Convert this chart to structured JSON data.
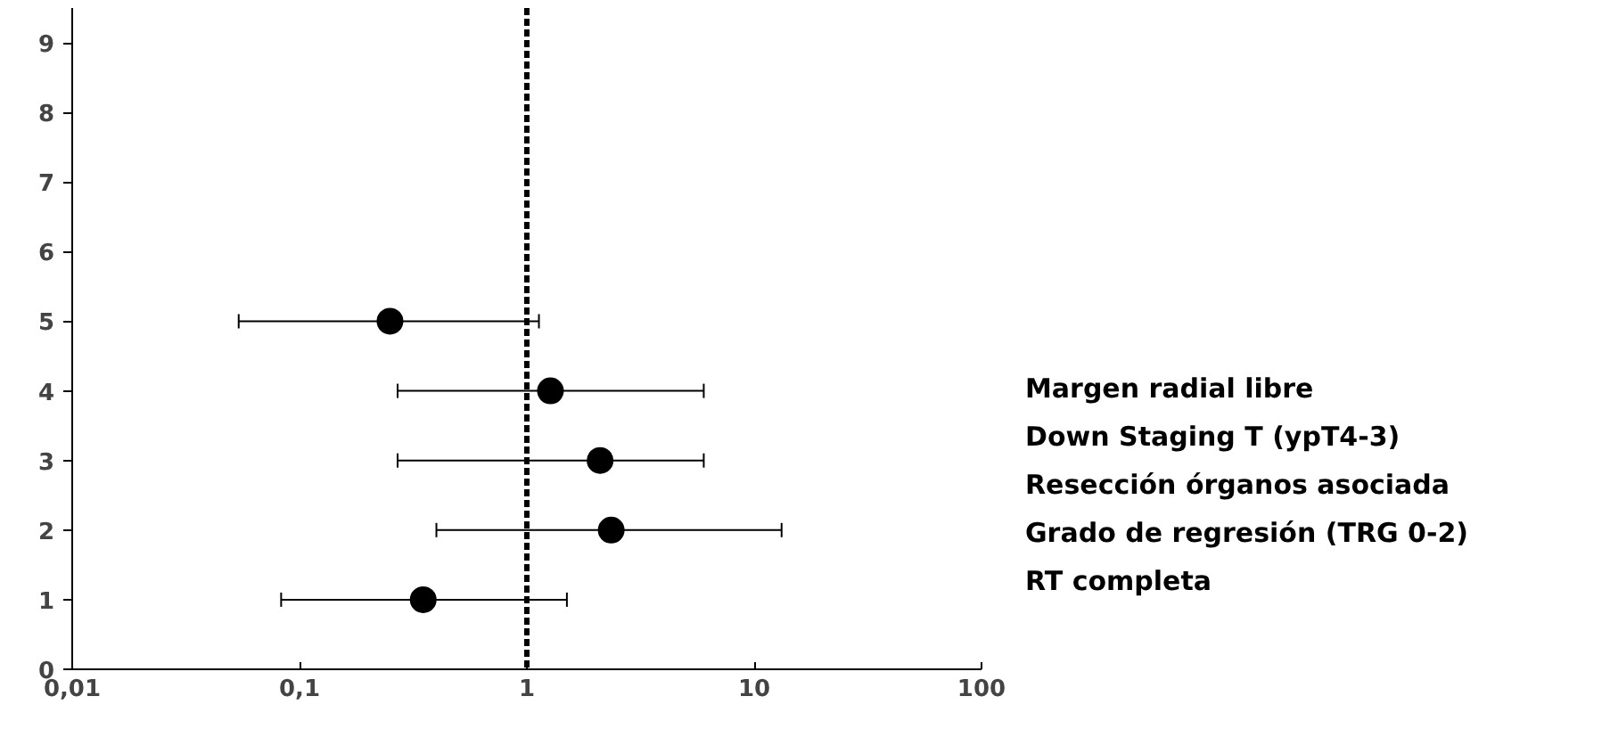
{
  "chart_data": {
    "type": "scatter",
    "series": [
      {
        "color": "#000000",
        "x": [
          0.25,
          1.27,
          2.1,
          2.35,
          0.35
        ],
        "values": [
          5,
          4,
          3,
          2,
          1
        ],
        "xerrors": [
          [
            0.054,
            1.13
          ],
          [
            0.27,
            6.0
          ],
          [
            0.27,
            6.0
          ],
          [
            0.4,
            13.2
          ],
          [
            0.083,
            1.5
          ]
        ]
      }
    ],
    "log": "x",
    "xlim": [
      0.01,
      100
    ],
    "ylim": [
      0,
      9.5
    ],
    "xticks": [
      {
        "value": 0.01,
        "label": "0,01"
      },
      {
        "value": 0.1,
        "label": "0,1"
      },
      1,
      10,
      100
    ],
    "yticks": [
      0,
      1,
      2,
      3,
      4,
      5,
      6,
      7,
      8,
      9
    ],
    "ref_lines": [
      {
        "axis": "x",
        "value": 1,
        "label": null,
        "color": "#000000",
        "line_style": "dashed"
      }
    ],
    "annotations": [
      "Margen radial libre",
      "Down Staging T (ypT4-3)",
      "Resección órganos asociada",
      "Grado de regresión (TRG 0-2)",
      "RT completa"
    ],
    "marker": "circle",
    "grid": false
  }
}
